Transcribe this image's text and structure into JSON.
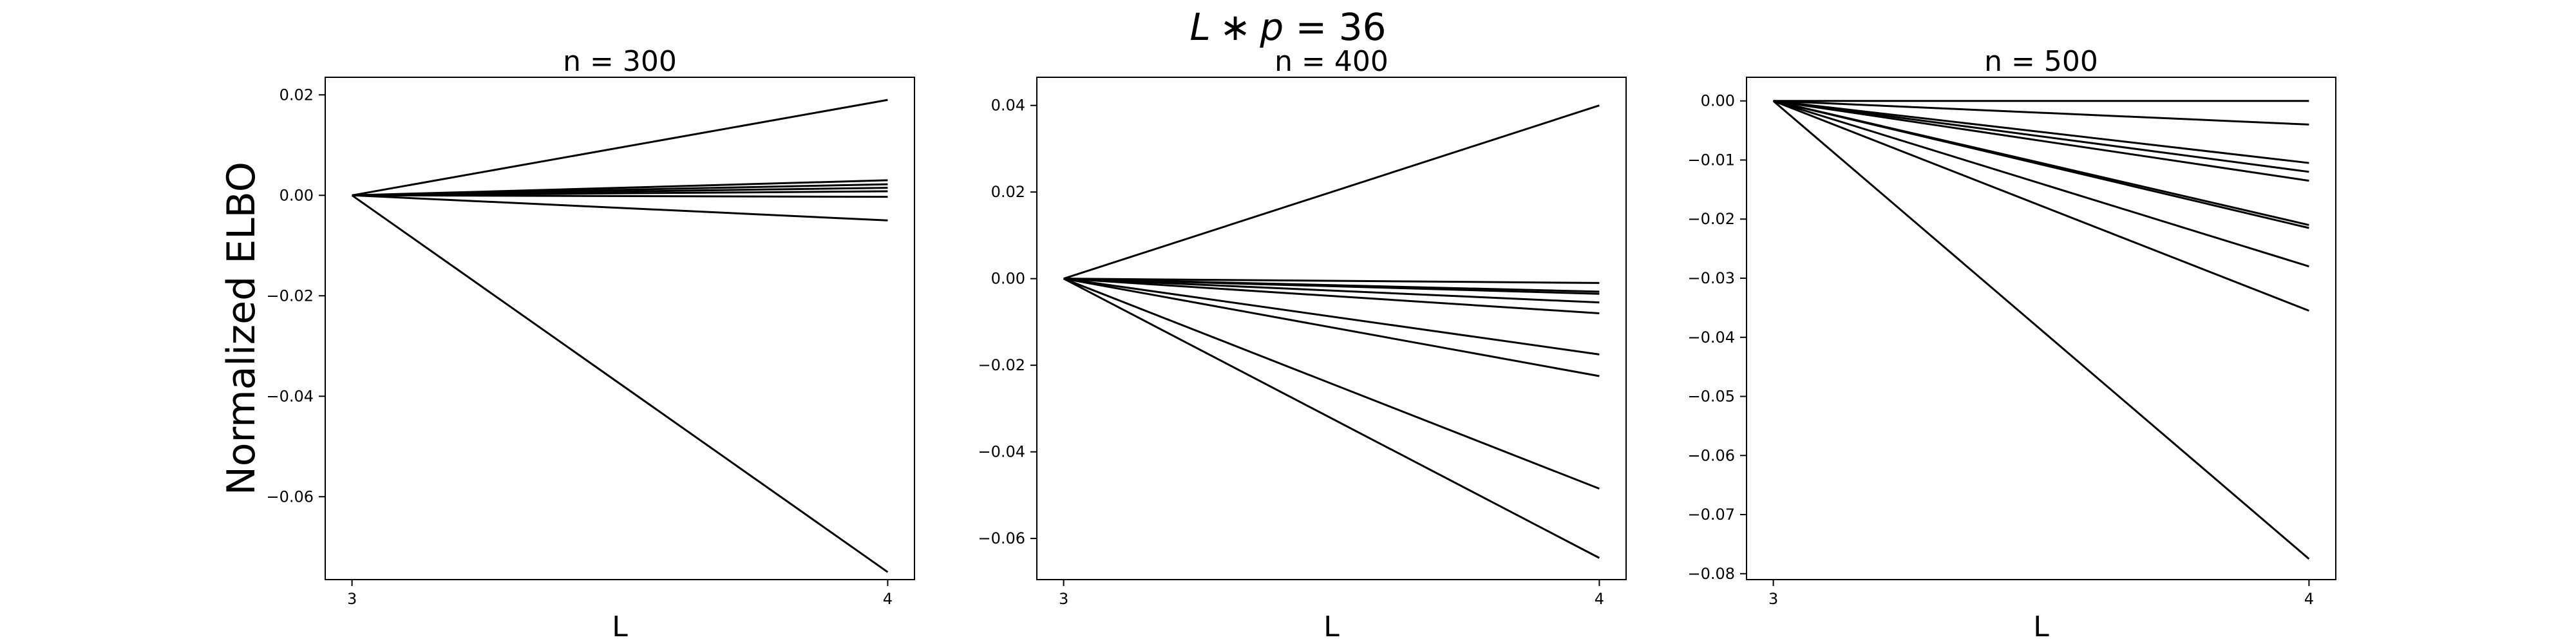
{
  "figure": {
    "suptitle_main": "L",
    "suptitle_op": "∗",
    "suptitle_var": "p",
    "suptitle_rest": " = 36"
  },
  "colors": {
    "line": "#000000",
    "axes": "#000000",
    "background": "#ffffff"
  },
  "chart_data": [
    {
      "type": "line",
      "title": "n = 300",
      "xlabel": "L",
      "ylabel": "Normalized ELBO",
      "xlim": [
        2.95,
        4.05
      ],
      "ylim": [
        -0.0765,
        0.0235
      ],
      "xticks": [
        3,
        4
      ],
      "xtick_labels": [
        "3",
        "4"
      ],
      "yticks": [
        0.02,
        0.0,
        -0.02,
        -0.04,
        -0.06
      ],
      "ytick_labels": [
        "0.02",
        "0.00",
        "−0.02",
        "−0.04",
        "−0.06"
      ],
      "x": [
        3,
        4
      ],
      "series": [
        {
          "values": [
            0,
            0.019
          ]
        },
        {
          "values": [
            0,
            0.003
          ]
        },
        {
          "values": [
            0,
            0.0022
          ]
        },
        {
          "values": [
            0,
            0.0015
          ]
        },
        {
          "values": [
            0,
            0.0008
          ]
        },
        {
          "values": [
            0,
            -0.0003
          ]
        },
        {
          "values": [
            0,
            -0.005
          ]
        },
        {
          "values": [
            0,
            -0.075
          ]
        }
      ]
    },
    {
      "type": "line",
      "title": "n = 400",
      "xlabel": "L",
      "ylabel": "",
      "xlim": [
        2.95,
        4.05
      ],
      "ylim": [
        -0.0695,
        0.0465
      ],
      "xticks": [
        3,
        4
      ],
      "xtick_labels": [
        "3",
        "4"
      ],
      "yticks": [
        0.04,
        0.02,
        0.0,
        -0.02,
        -0.04,
        -0.06
      ],
      "ytick_labels": [
        "0.04",
        "0.02",
        "0.00",
        "−0.02",
        "−0.04",
        "−0.06"
      ],
      "x": [
        3,
        4
      ],
      "series": [
        {
          "values": [
            0,
            0.04
          ]
        },
        {
          "values": [
            0,
            -0.001
          ]
        },
        {
          "values": [
            0,
            -0.003
          ]
        },
        {
          "values": [
            0,
            -0.0035
          ]
        },
        {
          "values": [
            0,
            -0.0055
          ]
        },
        {
          "values": [
            0,
            -0.008
          ]
        },
        {
          "values": [
            0,
            -0.0175
          ]
        },
        {
          "values": [
            0,
            -0.0225
          ]
        },
        {
          "values": [
            0,
            -0.0485
          ]
        },
        {
          "values": [
            0,
            -0.0645
          ]
        }
      ]
    },
    {
      "type": "line",
      "title": "n = 500",
      "xlabel": "L",
      "ylabel": "",
      "xlim": [
        2.95,
        4.05
      ],
      "ylim": [
        -0.081,
        0.004
      ],
      "xticks": [
        3,
        4
      ],
      "xtick_labels": [
        "3",
        "4"
      ],
      "yticks": [
        0.0,
        -0.01,
        -0.02,
        -0.03,
        -0.04,
        -0.05,
        -0.06,
        -0.07,
        -0.08
      ],
      "ytick_labels": [
        "0.00",
        "−0.01",
        "−0.02",
        "−0.03",
        "−0.04",
        "−0.05",
        "−0.06",
        "−0.07",
        "−0.08"
      ],
      "x": [
        3,
        4
      ],
      "series": [
        {
          "values": [
            0,
            0.0
          ]
        },
        {
          "values": [
            0,
            -0.004
          ]
        },
        {
          "values": [
            0,
            -0.0105
          ]
        },
        {
          "values": [
            0,
            -0.012
          ]
        },
        {
          "values": [
            0,
            -0.0135
          ]
        },
        {
          "values": [
            0,
            -0.021
          ]
        },
        {
          "values": [
            0,
            -0.0215
          ]
        },
        {
          "values": [
            0,
            -0.028
          ]
        },
        {
          "values": [
            0,
            -0.0355
          ]
        },
        {
          "values": [
            0,
            -0.0775
          ]
        }
      ]
    }
  ]
}
